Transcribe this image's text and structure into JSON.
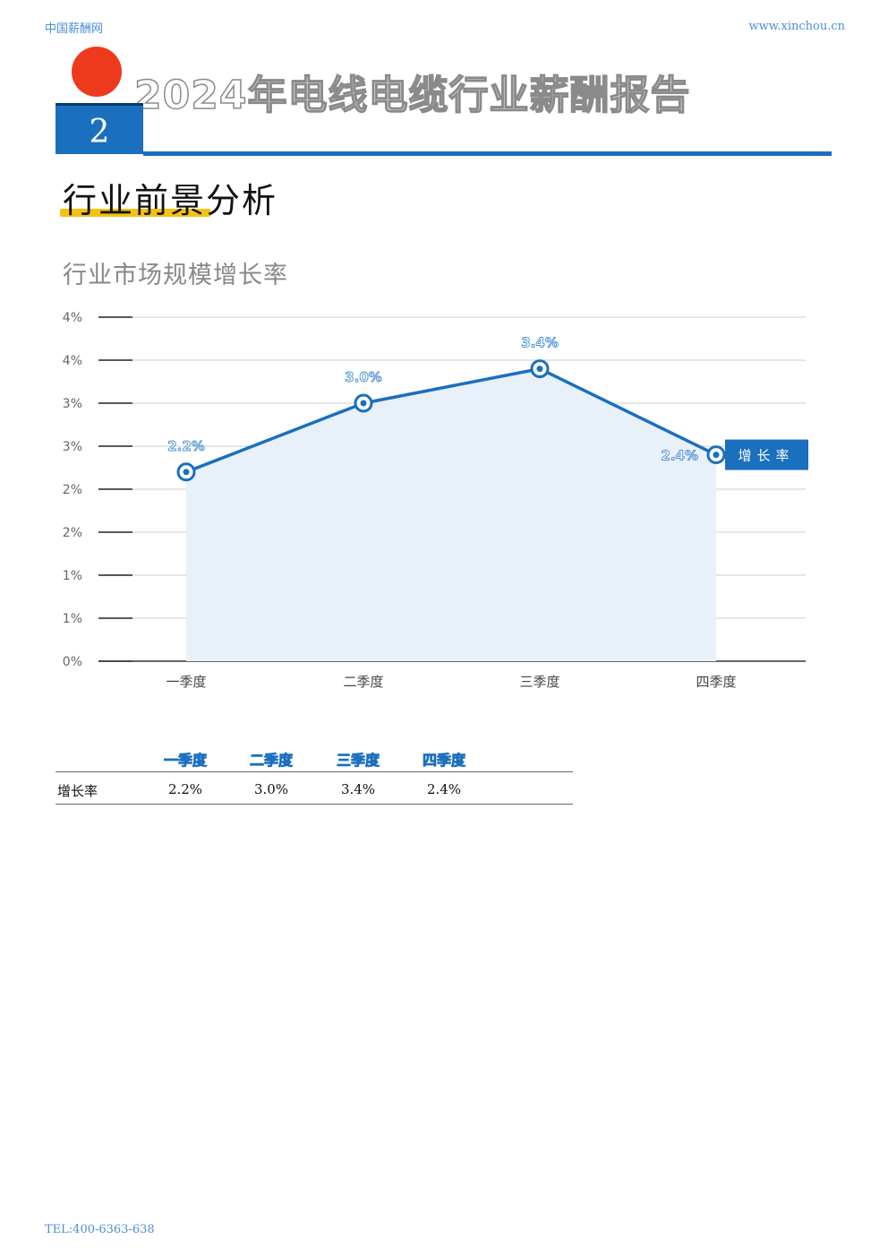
{
  "header": {
    "site_name": "中国薪酬网",
    "site_url": "www.xinchou.cn",
    "report_title": "2024年电线电缆行业薪酬报告",
    "chapter_number": "2"
  },
  "section": {
    "title": "行业前景分析",
    "chart_title": "行业市场规模增长率"
  },
  "chart_data": {
    "type": "area",
    "categories": [
      "一季度",
      "二季度",
      "三季度",
      "四季度"
    ],
    "series": [
      {
        "name": "增长率",
        "values": [
          2.2,
          3.0,
          3.4,
          2.4
        ],
        "labels": [
          "2.2%",
          "3.0%",
          "3.4%",
          "2.4%"
        ]
      }
    ],
    "yticks": [
      "0%",
      "1%",
      "1%",
      "2%",
      "2%",
      "3%",
      "3%",
      "4%",
      "4%"
    ],
    "ylim": [
      0,
      4
    ],
    "grid": true,
    "colors": {
      "line": "#1a6fbf",
      "fill": "#e8f0f9",
      "label": "#4a90d9",
      "legend_bg": "#1a6fbf"
    }
  },
  "table": {
    "headers": [
      "一季度",
      "二季度",
      "三季度",
      "四季度"
    ],
    "row_label": "增长率",
    "values": [
      "2.2%",
      "3.0%",
      "3.4%",
      "2.4%"
    ]
  },
  "footer": {
    "phone": "TEL:400-6363-638"
  }
}
